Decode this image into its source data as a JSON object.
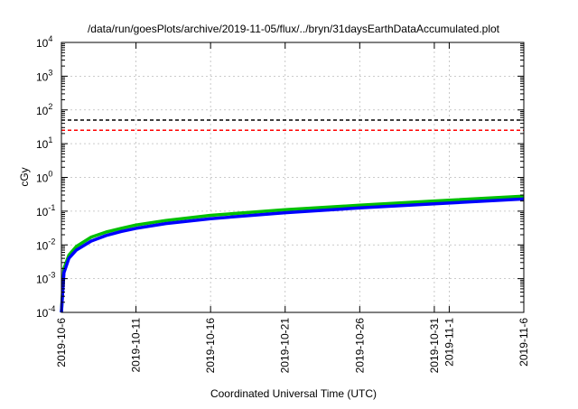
{
  "chart_data": {
    "type": "line",
    "title": "/data/run/goesPlots/archive/2019-11-05/flux/../bryn/31daysEarthDataAccumulated.plot",
    "xlabel": "Coordinated Universal Time (UTC)",
    "ylabel": "cGy",
    "y_scale": "log",
    "ylim": [
      0.0001,
      10000
    ],
    "y_ticks": [
      {
        "value": 0.0001,
        "base": "10",
        "exp": "-4"
      },
      {
        "value": 0.001,
        "base": "10",
        "exp": "-3"
      },
      {
        "value": 0.01,
        "base": "10",
        "exp": "-2"
      },
      {
        "value": 0.1,
        "base": "10",
        "exp": "-1"
      },
      {
        "value": 1,
        "base": "10",
        "exp": "0"
      },
      {
        "value": 10,
        "base": "10",
        "exp": "1"
      },
      {
        "value": 100,
        "base": "10",
        "exp": "2"
      },
      {
        "value": 1000,
        "base": "10",
        "exp": "3"
      },
      {
        "value": 10000,
        "base": "10",
        "exp": "4"
      }
    ],
    "xlim": [
      "2019-10-06",
      "2019-11-06"
    ],
    "x_ticks": [
      "2019-10-6",
      "2019-10-11",
      "2019-10-16",
      "2019-10-21",
      "2019-10-26",
      "2019-10-31",
      "2019-11-1",
      "2019-11-6"
    ],
    "x_tick_dates": [
      "2019-10-06",
      "2019-10-11",
      "2019-10-16",
      "2019-10-21",
      "2019-10-26",
      "2019-10-31",
      "2019-11-01",
      "2019-11-06"
    ],
    "grid": true,
    "reference_lines": [
      {
        "y": 50,
        "color": "#000000",
        "style": "dashed"
      },
      {
        "y": 25,
        "color": "#ff0000",
        "style": "dashed"
      }
    ],
    "series": [
      {
        "color": "#00c000",
        "points": [
          [
            "2019-10-06",
            0.0001
          ],
          [
            "2019-10-06T04:00",
            0.002
          ],
          [
            "2019-10-06T12:00",
            0.005
          ],
          [
            "2019-10-07",
            0.009
          ],
          [
            "2019-10-08",
            0.017
          ],
          [
            "2019-10-09",
            0.024
          ],
          [
            "2019-10-10",
            0.031
          ],
          [
            "2019-10-11",
            0.039
          ],
          [
            "2019-10-13",
            0.053
          ],
          [
            "2019-10-16",
            0.075
          ],
          [
            "2019-10-21",
            0.11
          ],
          [
            "2019-10-26",
            0.15
          ],
          [
            "2019-10-31",
            0.2
          ],
          [
            "2019-11-06",
            0.28
          ]
        ]
      },
      {
        "color": "#0000ff",
        "points": [
          [
            "2019-10-06",
            0.0001
          ],
          [
            "2019-10-06T04:00",
            0.0015
          ],
          [
            "2019-10-06T12:00",
            0.004
          ],
          [
            "2019-10-07",
            0.007
          ],
          [
            "2019-10-08",
            0.013
          ],
          [
            "2019-10-09",
            0.019
          ],
          [
            "2019-10-10",
            0.025
          ],
          [
            "2019-10-11",
            0.031
          ],
          [
            "2019-10-13",
            0.043
          ],
          [
            "2019-10-16",
            0.06
          ],
          [
            "2019-10-21",
            0.09
          ],
          [
            "2019-10-26",
            0.125
          ],
          [
            "2019-10-31",
            0.165
          ],
          [
            "2019-11-06",
            0.23
          ]
        ]
      }
    ]
  }
}
